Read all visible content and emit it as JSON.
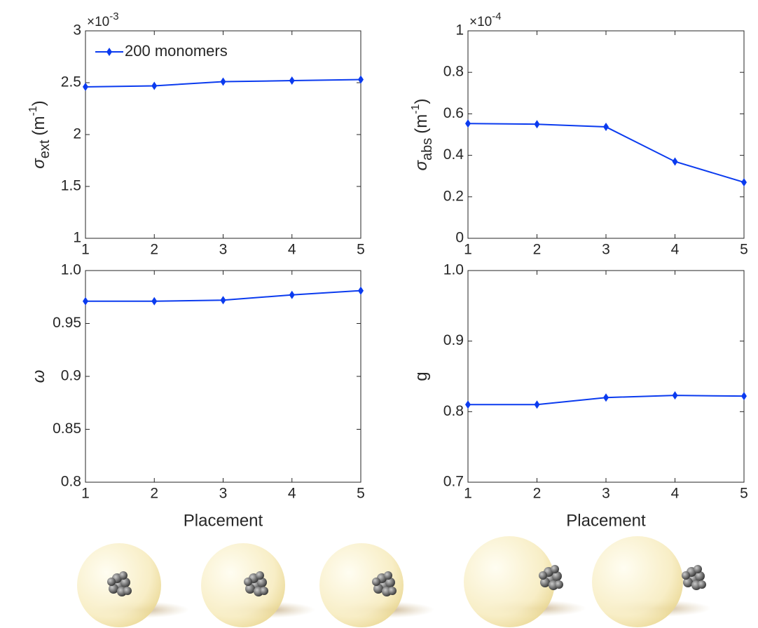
{
  "chart_data": [
    {
      "type": "line",
      "legend": "upper left",
      "ylabel": {
        "text": "σ",
        "sub": "ext",
        "unit": "(m",
        "sup": "-1",
        "end": ")"
      },
      "exponent": {
        "base": "×10",
        "power": "-3"
      },
      "x": [
        1,
        2,
        3,
        4,
        5
      ],
      "xlim": [
        1,
        5
      ],
      "xticks": [
        1,
        2,
        3,
        4,
        5
      ],
      "ylim": [
        1,
        3
      ],
      "yticks": [
        1,
        1.5,
        2,
        2.5,
        3
      ],
      "series": [
        {
          "name": "200 monomers",
          "color": "#0b3bef",
          "values": [
            2.46,
            2.47,
            2.51,
            2.52,
            2.53
          ]
        }
      ]
    },
    {
      "type": "line",
      "ylabel": {
        "text": "σ",
        "sub": "abs",
        "unit": "(m",
        "sup": "-1",
        "end": ")"
      },
      "exponent": {
        "base": "×10",
        "power": "-4"
      },
      "x": [
        1,
        2,
        3,
        4,
        5
      ],
      "xlim": [
        1,
        5
      ],
      "xticks": [
        1,
        2,
        3,
        4,
        5
      ],
      "ylim": [
        0,
        1
      ],
      "yticks": [
        0,
        0.2,
        0.4,
        0.6,
        0.8,
        1
      ],
      "series": [
        {
          "color": "#0b3bef",
          "values": [
            0.553,
            0.55,
            0.537,
            0.37,
            0.27
          ]
        }
      ]
    },
    {
      "type": "line",
      "ylabel": {
        "text": "ω"
      },
      "xlabel": "Placement",
      "x": [
        1,
        2,
        3,
        4,
        5
      ],
      "xlim": [
        1,
        5
      ],
      "xticks": [
        1,
        2,
        3,
        4,
        5
      ],
      "ylim": [
        0.8,
        1
      ],
      "yticks": [
        0.8,
        0.85,
        0.9,
        0.95,
        {
          "value": 1,
          "label": "1.0"
        }
      ],
      "series": [
        {
          "color": "#0b3bef",
          "values": [
            0.971,
            0.971,
            0.972,
            0.977,
            0.981
          ]
        }
      ]
    },
    {
      "type": "line",
      "ylabel": {
        "text": "g"
      },
      "xlabel": "Placement",
      "x": [
        1,
        2,
        3,
        4,
        5
      ],
      "xlim": [
        1,
        5
      ],
      "xticks": [
        1,
        2,
        3,
        4,
        5
      ],
      "ylim": [
        0.7,
        1
      ],
      "yticks": [
        0.7,
        0.8,
        0.9,
        {
          "value": 1,
          "label": "1.0"
        }
      ],
      "series": [
        {
          "color": "#0b3bef",
          "values": [
            0.81,
            0.81,
            0.82,
            0.823,
            0.822
          ]
        }
      ]
    }
  ]
}
